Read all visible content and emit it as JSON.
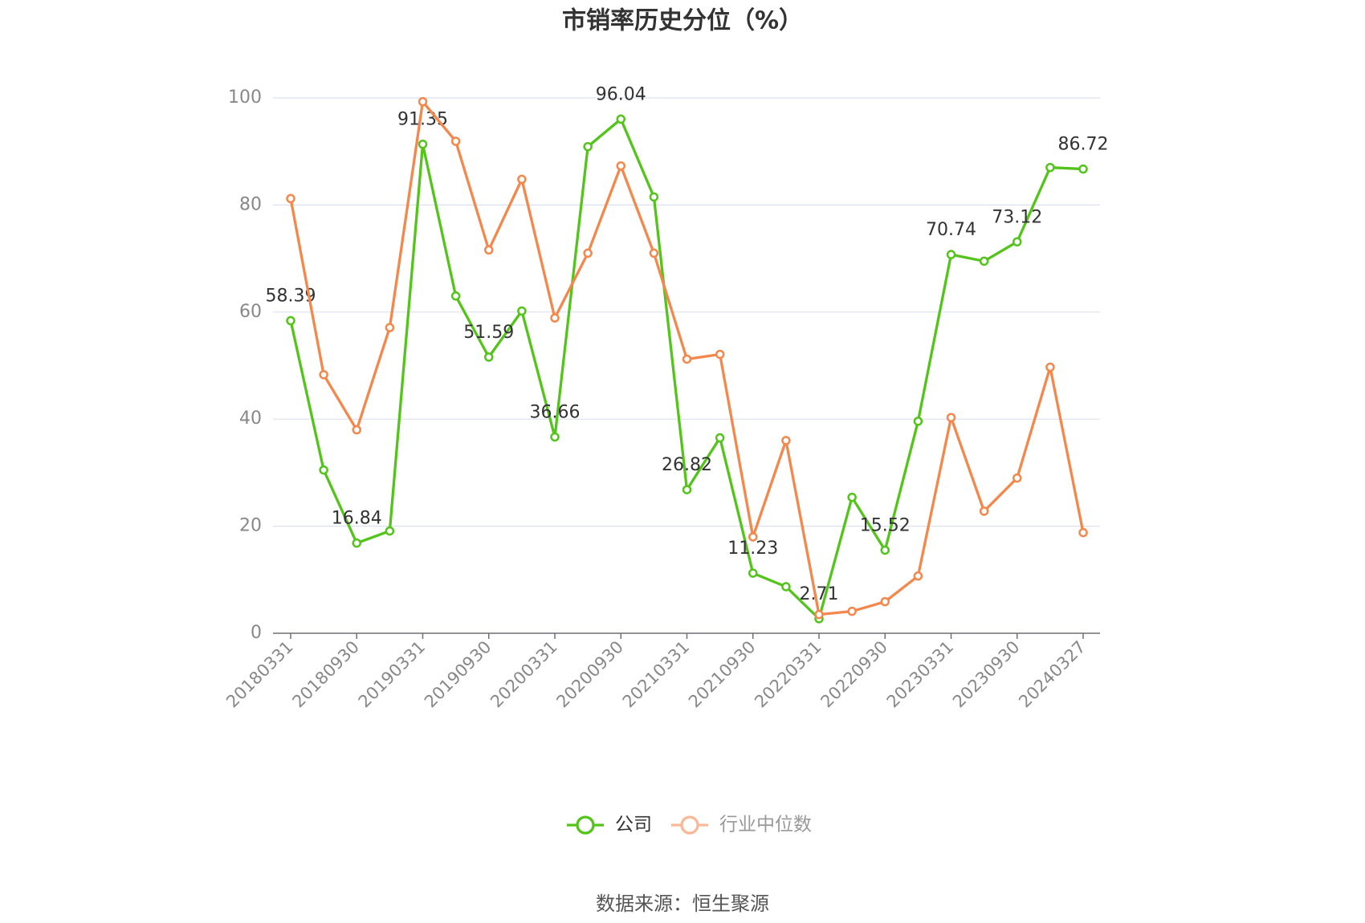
{
  "chart_data": {
    "type": "line",
    "title": "市销率历史分位（%）",
    "categories": [
      "20180331",
      null,
      "20180930",
      null,
      "20190331",
      null,
      "20190930",
      null,
      "20200331",
      null,
      "20200930",
      null,
      "20210331",
      null,
      "20210930",
      null,
      "20220331",
      null,
      "20220930",
      null,
      "20230331",
      null,
      "20230930",
      null,
      "20240327"
    ],
    "series": [
      {
        "name": "公司",
        "color": "#52c41a",
        "values": [
          58.39,
          30.5,
          16.84,
          19.1,
          91.35,
          63.0,
          51.59,
          60.2,
          36.66,
          90.9,
          96.04,
          81.5,
          26.82,
          36.5,
          11.23,
          8.7,
          2.71,
          25.4,
          15.52,
          39.6,
          70.74,
          69.5,
          73.12,
          87.0,
          86.72
        ],
        "value_labels": [
          "58.39",
          null,
          "16.84",
          null,
          "91.35",
          null,
          "51.59",
          null,
          "36.66",
          null,
          "96.04",
          null,
          "26.82",
          null,
          "11.23",
          null,
          "2.71",
          null,
          "15.52",
          null,
          "70.74",
          null,
          "73.12",
          null,
          "86.72"
        ]
      },
      {
        "name": "行业中位数",
        "color": "#f4874b",
        "values": [
          81.2,
          48.3,
          38.0,
          57.1,
          99.3,
          91.9,
          71.6,
          84.8,
          58.9,
          71.0,
          87.3,
          71.0,
          51.2,
          52.1,
          18.0,
          36.0,
          3.5,
          4.1,
          5.9,
          10.7,
          40.3,
          22.8,
          29.0,
          49.7,
          18.8
        ]
      }
    ],
    "ylim": [
      0,
      100
    ],
    "yticks": [
      0,
      20,
      40,
      60,
      80,
      100
    ],
    "grid": true,
    "source": "数据来源：恒生聚源"
  }
}
